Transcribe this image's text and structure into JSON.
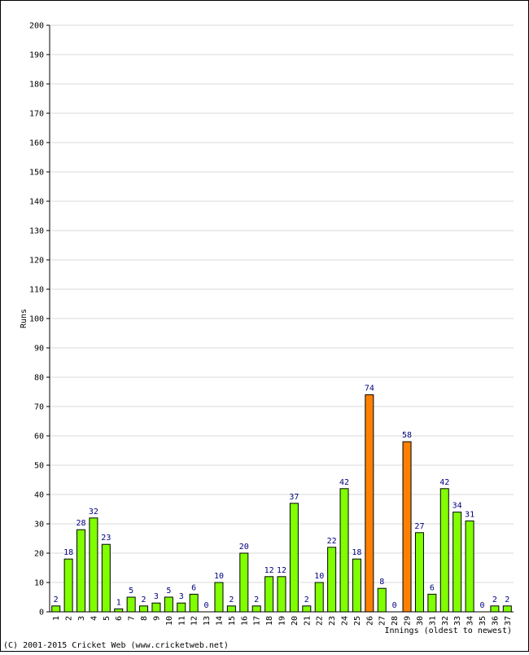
{
  "chart_data": {
    "type": "bar",
    "title": "",
    "ylabel": "Runs",
    "xlabel": "Innings (oldest to newest)",
    "ylim": [
      0,
      200
    ],
    "ytick_step": 10,
    "grid": true,
    "categories": [
      "1",
      "2",
      "3",
      "4",
      "5",
      "6",
      "7",
      "8",
      "9",
      "10",
      "11",
      "12",
      "13",
      "14",
      "15",
      "16",
      "17",
      "18",
      "19",
      "20",
      "21",
      "22",
      "23",
      "24",
      "25",
      "26",
      "27",
      "28",
      "29",
      "30",
      "31",
      "32",
      "33",
      "34",
      "35",
      "36",
      "37"
    ],
    "values": [
      2,
      18,
      28,
      32,
      23,
      1,
      5,
      2,
      3,
      5,
      3,
      6,
      0,
      10,
      2,
      20,
      2,
      12,
      12,
      37,
      2,
      10,
      22,
      42,
      18,
      74,
      8,
      0,
      58,
      27,
      6,
      42,
      34,
      31,
      0,
      2,
      2
    ],
    "highlight_threshold": 50,
    "colors": {
      "normal": "#80ff00",
      "highlight": "#ff8000",
      "bar_outline": "#000000",
      "grid": "#d8d8d8",
      "value_label": "#000080"
    }
  },
  "footer": {
    "copyright": "(C) 2001-2015 Cricket Web (www.cricketweb.net)"
  }
}
